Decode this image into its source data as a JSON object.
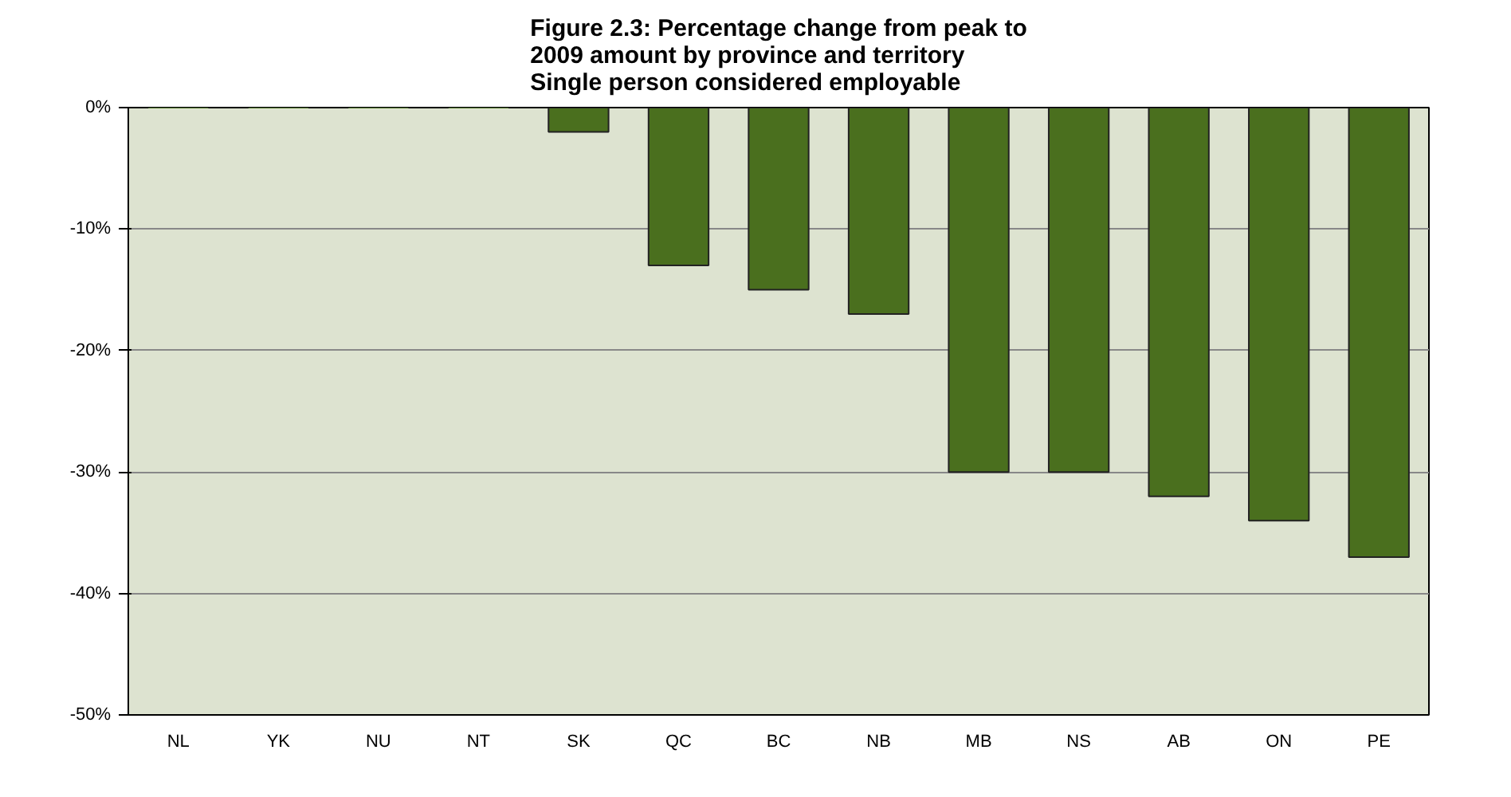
{
  "chart_data": {
    "type": "bar",
    "title": "Figure 2.3: Percentage change from peak to\n2009 amount by province and territory\nSingle person considered employable",
    "categories": [
      "NL",
      "YK",
      "NU",
      "NT",
      "SK",
      "QC",
      "BC",
      "NB",
      "MB",
      "NS",
      "AB",
      "ON",
      "PE"
    ],
    "values": [
      0,
      0,
      0,
      0,
      -2,
      -13,
      -15,
      -17,
      -30,
      -30,
      -32,
      -34,
      -37
    ],
    "color": "#4a6f1e",
    "ylim": [
      -50,
      0
    ],
    "yticks": [
      {
        "value": -50,
        "label": "-50%"
      },
      {
        "value": -40,
        "label": "-40%"
      },
      {
        "value": -30,
        "label": "-30%"
      },
      {
        "value": -20,
        "label": "-20%"
      },
      {
        "value": -10,
        "label": "-10%"
      },
      {
        "value": 0,
        "label": "0%"
      }
    ],
    "grid": "y"
  }
}
